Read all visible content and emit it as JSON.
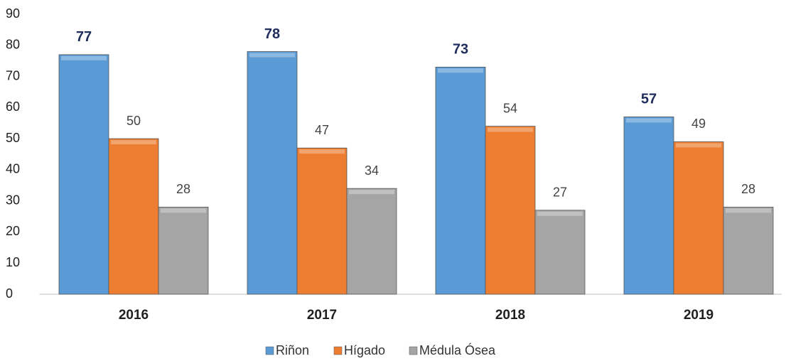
{
  "chart_data": {
    "type": "bar",
    "categories": [
      "2016",
      "2017",
      "2018",
      "2019"
    ],
    "series": [
      {
        "name": "Riñon",
        "color": "#5b9bd5",
        "values": [
          77,
          78,
          73,
          57
        ]
      },
      {
        "name": "Hígado",
        "color": "#ed7d31",
        "values": [
          50,
          47,
          54,
          49
        ]
      },
      {
        "name": "Médula Ósea",
        "color": "#a5a5a5",
        "values": [
          28,
          34,
          27,
          28
        ]
      }
    ],
    "ylim": [
      0,
      90
    ],
    "yticks": [
      0,
      10,
      20,
      30,
      40,
      50,
      60,
      70,
      80,
      90
    ],
    "grid": false,
    "legend": "bottom"
  }
}
